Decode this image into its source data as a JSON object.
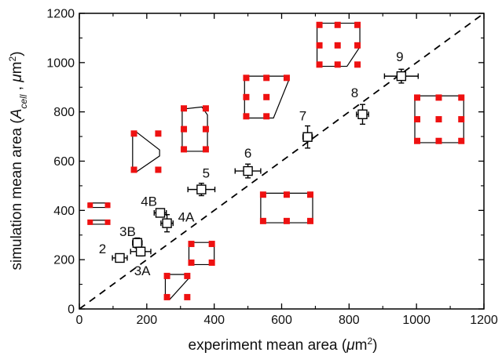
{
  "chart_data": {
    "type": "scatter",
    "xlabel_parts": [
      "experiment mean area (",
      "μ",
      "m",
      "2",
      ")"
    ],
    "ylabel_parts": [
      "simulation mean area (",
      "A",
      "cell",
      " , ",
      "μ",
      "m",
      "2",
      ")"
    ],
    "xlim": [
      0,
      1200
    ],
    "ylim": [
      0,
      1200
    ],
    "xticks": [
      "0",
      "200",
      "400",
      "600",
      "800",
      "1000",
      "1200"
    ],
    "yticks": [
      "0",
      "200",
      "400",
      "600",
      "800",
      "1000",
      "1200"
    ],
    "reference_line": "y = x (dashed)",
    "points": [
      {
        "label": "2",
        "x": 120,
        "y": 207,
        "xerr": 22,
        "yerr": 12
      },
      {
        "label": "3B",
        "x": 172,
        "y": 268,
        "xerr": 14,
        "yerr": 20
      },
      {
        "label": "3A",
        "x": 182,
        "y": 233,
        "xerr": 30,
        "yerr": 18
      },
      {
        "label": "4B",
        "x": 240,
        "y": 390,
        "xerr": 18,
        "yerr": 15
      },
      {
        "label": "4A",
        "x": 260,
        "y": 348,
        "xerr": 18,
        "yerr": 35
      },
      {
        "label": "5",
        "x": 362,
        "y": 485,
        "xerr": 40,
        "yerr": 25
      },
      {
        "label": "6",
        "x": 500,
        "y": 560,
        "xerr": 38,
        "yerr": 28
      },
      {
        "label": "7",
        "x": 677,
        "y": 698,
        "xerr": 14,
        "yerr": 45
      },
      {
        "label": "8",
        "x": 840,
        "y": 790,
        "xerr": 18,
        "yerr": 40
      },
      {
        "label": "9",
        "x": 955,
        "y": 945,
        "xerr": 50,
        "yerr": 28
      }
    ],
    "insets": [
      {
        "name": "inset-shape-2-stripe-top",
        "kind": "stripe",
        "x0": 28,
        "x1": 88,
        "y0": 412,
        "y1": 430,
        "dots": [
          [
            32,
            421
          ],
          [
            84,
            421
          ]
        ]
      },
      {
        "name": "inset-shape-2-stripe-bottom",
        "kind": "stripe",
        "x0": 28,
        "x1": 88,
        "y0": 344,
        "y1": 360,
        "dots": [
          [
            32,
            352
          ],
          [
            84,
            352
          ]
        ]
      },
      {
        "name": "inset-shape-3B",
        "kind": "triangle-bevel",
        "x0": 158,
        "x1": 238,
        "y0": 555,
        "y1": 720,
        "dots": [
          [
            162,
            712
          ],
          [
            234,
            712
          ],
          [
            162,
            565
          ],
          [
            234,
            565
          ]
        ]
      },
      {
        "name": "inset-shape-3A",
        "kind": "square-bevel",
        "x0": 255,
        "x1": 325,
        "y0": 40,
        "y1": 140,
        "dots": [
          [
            260,
            134
          ],
          [
            320,
            134
          ],
          [
            260,
            48
          ],
          [
            320,
            48
          ]
        ]
      },
      {
        "name": "inset-shape-4A",
        "kind": "square",
        "x0": 325,
        "x1": 400,
        "y0": 180,
        "y1": 270,
        "dots": [
          [
            332,
            264
          ],
          [
            393,
            264
          ],
          [
            332,
            188
          ],
          [
            393,
            188
          ]
        ]
      },
      {
        "name": "inset-shape-5",
        "kind": "pentagon",
        "x0": 305,
        "x1": 380,
        "y0": 640,
        "y1": 820,
        "dots": [
          [
            310,
            814
          ],
          [
            375,
            814
          ],
          [
            310,
            648
          ],
          [
            375,
            648
          ],
          [
            310,
            730
          ],
          [
            375,
            730
          ]
        ]
      },
      {
        "name": "inset-shape-6",
        "kind": "rect-wide",
        "x0": 538,
        "x1": 692,
        "y0": 350,
        "y1": 470,
        "dots": [
          [
            545,
            464
          ],
          [
            615,
            464
          ],
          [
            685,
            464
          ],
          [
            545,
            357
          ],
          [
            615,
            357
          ],
          [
            685,
            357
          ]
        ]
      },
      {
        "name": "inset-shape-7",
        "kind": "trapezoid-right",
        "x0": 490,
        "x1": 622,
        "y0": 775,
        "y1": 945,
        "dots": [
          [
            495,
            938
          ],
          [
            555,
            938
          ],
          [
            615,
            938
          ],
          [
            495,
            860
          ],
          [
            555,
            860
          ],
          [
            495,
            782
          ],
          [
            555,
            782
          ]
        ]
      },
      {
        "name": "inset-shape-8",
        "kind": "hex-bottom-right",
        "x0": 705,
        "x1": 832,
        "y0": 985,
        "y1": 1160,
        "dots": [
          [
            712,
            1153
          ],
          [
            766,
            1153
          ],
          [
            825,
            1153
          ],
          [
            712,
            1070
          ],
          [
            766,
            1070
          ],
          [
            825,
            1070
          ],
          [
            712,
            992
          ],
          [
            766,
            992
          ],
          [
            825,
            992
          ]
        ]
      },
      {
        "name": "inset-shape-9",
        "kind": "rect-large",
        "x0": 995,
        "x1": 1140,
        "y0": 675,
        "y1": 865,
        "dots": [
          [
            1002,
            858
          ],
          [
            1066,
            858
          ],
          [
            1133,
            858
          ],
          [
            1002,
            770
          ],
          [
            1066,
            770
          ],
          [
            1133,
            770
          ],
          [
            1002,
            682
          ],
          [
            1066,
            682
          ],
          [
            1133,
            682
          ]
        ]
      }
    ],
    "marker_color": "#000000",
    "dot_color": "#ee1111",
    "grid": false,
    "legend": "none"
  }
}
